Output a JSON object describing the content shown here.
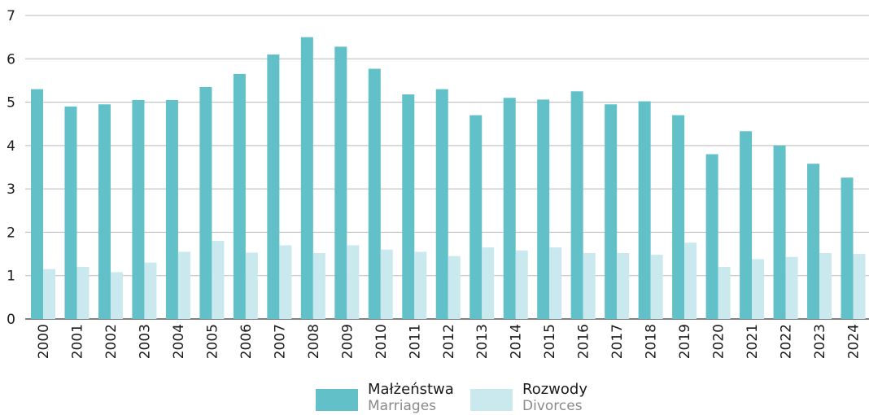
{
  "chart_data": {
    "type": "bar",
    "categories": [
      "2000",
      "2001",
      "2002",
      "2003",
      "2004",
      "2005",
      "2006",
      "2007",
      "2008",
      "2009",
      "2010",
      "2011",
      "2012",
      "2013",
      "2014",
      "2015",
      "2016",
      "2017",
      "2018",
      "2019",
      "2020",
      "2021",
      "2022",
      "2023",
      "2024"
    ],
    "series": [
      {
        "name": "Małżeństwa / Marriages",
        "color": "#62c0c8",
        "values": [
          5.3,
          4.9,
          4.95,
          5.05,
          5.05,
          5.35,
          5.65,
          6.1,
          6.5,
          6.28,
          5.77,
          5.18,
          5.3,
          4.7,
          5.1,
          5.06,
          5.25,
          4.95,
          5.02,
          4.7,
          3.8,
          4.33,
          4.0,
          3.58,
          3.26
        ]
      },
      {
        "name": "Rozwody / Divorces",
        "color": "#c9e9ee",
        "values": [
          1.15,
          1.2,
          1.08,
          1.3,
          1.55,
          1.8,
          1.53,
          1.7,
          1.52,
          1.7,
          1.6,
          1.55,
          1.45,
          1.65,
          1.58,
          1.65,
          1.52,
          1.52,
          1.48,
          1.76,
          1.2,
          1.38,
          1.43,
          1.52,
          1.5
        ]
      }
    ],
    "ylim": [
      0,
      7
    ],
    "yticks": [
      "0",
      "1",
      "2",
      "3",
      "4",
      "5",
      "6",
      "7"
    ],
    "grid": true,
    "legend_position": "bottom-center"
  },
  "legend": {
    "items": [
      {
        "label_pl": "Małżeństwa",
        "label_en": "Marriages",
        "color": "#62c0c8"
      },
      {
        "label_pl": "Rozwody",
        "label_en": "Divorces",
        "color": "#c9e9ee"
      }
    ]
  }
}
